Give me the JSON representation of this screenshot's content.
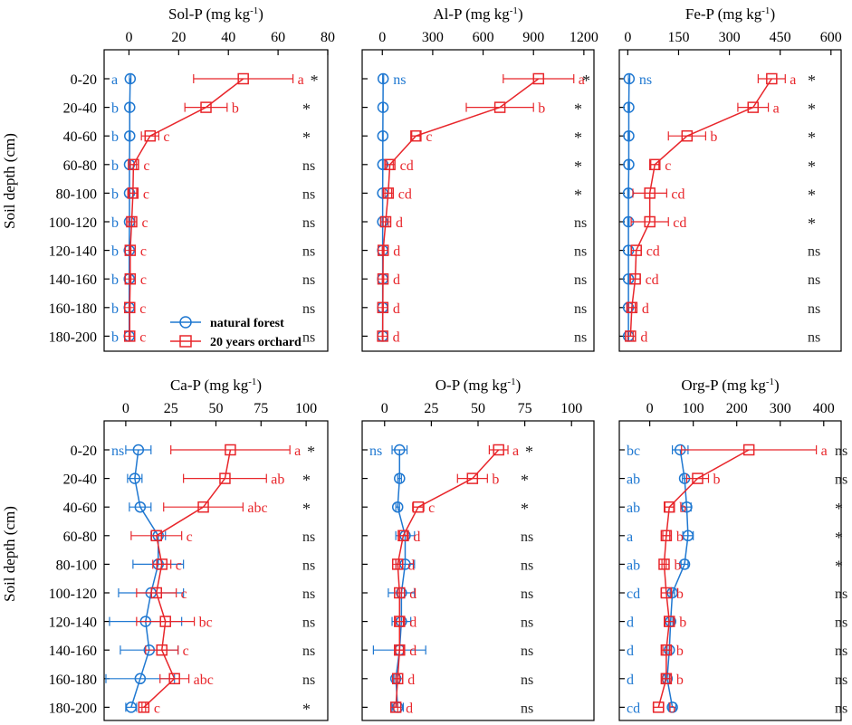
{
  "figure": {
    "ylabel": "Soil depth (cm)",
    "depths": [
      "0-20",
      "20-40",
      "40-60",
      "60-80",
      "80-100",
      "100-120",
      "120-140",
      "140-160",
      "160-180",
      "180-200"
    ],
    "legend": {
      "forest": "natural forest",
      "orchard": "20 years orchard"
    },
    "colors": {
      "forest": "#1f78d1",
      "orchard": "#e8262b",
      "sig": "#222222",
      "axis": "#000000"
    }
  },
  "chart_data": [
    {
      "type": "line",
      "title": "Sol-P",
      "unit": "(mg kg",
      "unit_sup": "-1",
      "unit_close": ")",
      "xlim": [
        -10,
        80
      ],
      "ticks": [
        0,
        20,
        40,
        60,
        80
      ],
      "categories": [
        "0-20",
        "20-40",
        "40-60",
        "60-80",
        "80-100",
        "100-120",
        "120-140",
        "140-160",
        "160-180",
        "180-200"
      ],
      "series": [
        {
          "name": "natural forest",
          "values": [
            0.5,
            0.3,
            0.3,
            0.2,
            0.2,
            0.2,
            0.1,
            0.1,
            0.1,
            0.1
          ],
          "err": [
            0.3,
            0.2,
            0.2,
            0.2,
            0.2,
            0.2,
            0.1,
            0.1,
            0.1,
            0.1
          ],
          "letters": [
            "a",
            "b",
            "b",
            "b",
            "b",
            "b",
            "b",
            "b",
            "b",
            "b"
          ]
        },
        {
          "name": "20 years orchard",
          "values": [
            46,
            31,
            8.5,
            1.8,
            1.6,
            1.1,
            0.5,
            0.5,
            0.3,
            0.3
          ],
          "err": [
            20,
            8.5,
            3.5,
            1.2,
            1.5,
            1.2,
            0.3,
            0.3,
            0.2,
            0.2
          ],
          "letters": [
            "a",
            "b",
            "c",
            "c",
            "c",
            "c",
            "c",
            "c",
            "c",
            "c"
          ]
        }
      ],
      "sig": [
        "*",
        "*",
        "*",
        "ns",
        "ns",
        "ns",
        "ns",
        "ns",
        "ns",
        "ns"
      ]
    },
    {
      "type": "line",
      "title": "Al-P",
      "unit": "(mg kg",
      "unit_sup": "-1",
      "unit_close": ")",
      "xlim": [
        -120,
        1260
      ],
      "ticks": [
        0,
        300,
        600,
        900,
        1200
      ],
      "categories": [
        "0-20",
        "20-40",
        "40-60",
        "60-80",
        "80-100",
        "100-120",
        "120-140",
        "140-160",
        "160-180",
        "180-200"
      ],
      "series": [
        {
          "name": "natural forest",
          "values": [
            5,
            4,
            3,
            3,
            2,
            2,
            2,
            2,
            2,
            2
          ],
          "err": [
            3,
            2,
            2,
            2,
            2,
            2,
            1,
            1,
            1,
            1
          ],
          "letters": [
            "ns",
            "",
            "",
            "",
            "",
            "",
            "",
            "",
            "",
            ""
          ]
        },
        {
          "name": "20 years orchard",
          "values": [
            930,
            700,
            200,
            45,
            35,
            20,
            5,
            4,
            3,
            2
          ],
          "err": [
            210,
            200,
            25,
            20,
            20,
            15,
            5,
            4,
            3,
            2
          ],
          "letters": [
            "a",
            "b",
            "c",
            "cd",
            "cd",
            "d",
            "d",
            "d",
            "d",
            "d"
          ]
        }
      ],
      "sig": [
        "*",
        "*",
        "*",
        "*",
        "*",
        "ns",
        "ns",
        "ns",
        "ns",
        "ns"
      ]
    },
    {
      "type": "line",
      "title": "Fe-P",
      "unit": "(mg kg",
      "unit_sup": "-1",
      "unit_close": ")",
      "xlim": [
        -25,
        630
      ],
      "ticks": [
        0,
        150,
        300,
        450,
        600
      ],
      "categories": [
        "0-20",
        "20-40",
        "40-60",
        "60-80",
        "80-100",
        "100-120",
        "120-140",
        "140-160",
        "160-180",
        "180-200"
      ],
      "series": [
        {
          "name": "natural forest",
          "values": [
            4,
            3,
            3,
            3,
            2,
            2,
            2,
            2,
            2,
            2
          ],
          "err": [
            2,
            2,
            2,
            2,
            2,
            2,
            1,
            1,
            1,
            1
          ],
          "letters": [
            "ns",
            "",
            "",
            "",
            "",
            "",
            "",
            "",
            "",
            ""
          ]
        },
        {
          "name": "20 years orchard",
          "values": [
            425,
            370,
            175,
            80,
            65,
            65,
            25,
            22,
            12,
            8
          ],
          "err": [
            40,
            45,
            55,
            12,
            50,
            55,
            15,
            15,
            10,
            8
          ],
          "letters": [
            "a",
            "a",
            "b",
            "c",
            "cd",
            "cd",
            "cd",
            "cd",
            "d",
            "d"
          ]
        }
      ],
      "sig": [
        "*",
        "*",
        "*",
        "*",
        "*",
        "*",
        "ns",
        "ns",
        "ns",
        "ns"
      ]
    },
    {
      "type": "line",
      "title": "Ca-P",
      "unit": "(mg kg",
      "unit_sup": "-1",
      "unit_close": ")",
      "xlim": [
        -12,
        112
      ],
      "ticks": [
        0,
        25,
        50,
        75,
        100
      ],
      "categories": [
        "0-20",
        "20-40",
        "40-60",
        "60-80",
        "80-100",
        "100-120",
        "120-140",
        "140-160",
        "160-180",
        "180-200"
      ],
      "series": [
        {
          "name": "natural forest",
          "values": [
            7,
            5,
            8,
            18,
            18,
            14,
            11,
            13,
            8,
            3
          ],
          "err": [
            7,
            4,
            6,
            4,
            14,
            18,
            20,
            16,
            19,
            3
          ],
          "letters": [
            "ns",
            "",
            "",
            "",
            "",
            "",
            "",
            "",
            "",
            ""
          ]
        },
        {
          "name": "20 years orchard",
          "values": [
            58,
            55,
            43,
            17,
            20,
            17,
            22,
            20,
            27,
            10
          ],
          "err": [
            33,
            23,
            22,
            14,
            5,
            11,
            16,
            9,
            8,
            1
          ],
          "letters": [
            "a",
            "ab",
            "abc",
            "c",
            "c",
            "c",
            "bc",
            "c",
            "abc",
            "c"
          ]
        }
      ],
      "sig": [
        "*",
        "*",
        "*",
        "ns",
        "ns",
        "ns",
        "ns",
        "ns",
        "ns",
        "*"
      ]
    },
    {
      "type": "line",
      "title": "O-P",
      "unit": "(mg kg",
      "unit_sup": "-1",
      "unit_close": ")",
      "xlim": [
        -12,
        112
      ],
      "ticks": [
        0,
        25,
        50,
        75,
        100
      ],
      "categories": [
        "0-20",
        "20-40",
        "40-60",
        "60-80",
        "80-100",
        "100-120",
        "120-140",
        "140-160",
        "160-180",
        "180-200"
      ],
      "series": [
        {
          "name": "natural forest",
          "values": [
            8,
            8,
            7,
            11,
            11,
            9,
            9,
            8,
            6,
            7
          ],
          "err": [
            4,
            1,
            1,
            5,
            5,
            7,
            5,
            14,
            1,
            3
          ],
          "letters": [
            "ns",
            "",
            "",
            "",
            "",
            "",
            "",
            "",
            "",
            ""
          ]
        },
        {
          "name": "20 years orchard",
          "values": [
            61,
            47,
            18,
            10,
            7,
            8,
            8,
            8,
            7,
            6
          ],
          "err": [
            5,
            8,
            3,
            2,
            1,
            1,
            2,
            2,
            1,
            1
          ],
          "letters": [
            "a",
            "b",
            "c",
            "d",
            "d",
            "d",
            "d",
            "d",
            "d",
            "d"
          ]
        }
      ],
      "sig": [
        "*",
        "*",
        "*",
        "ns",
        "ns",
        "ns",
        "ns",
        "ns",
        "ns",
        "ns"
      ]
    },
    {
      "type": "line",
      "title": "Org-P",
      "unit": "(mg kg",
      "unit_sup": "-1",
      "unit_close": ")",
      "xlim": [
        -70,
        440
      ],
      "ticks": [
        0,
        100,
        200,
        300,
        400
      ],
      "categories": [
        "0-20",
        "20-40",
        "40-60",
        "60-80",
        "80-100",
        "100-120",
        "120-140",
        "140-160",
        "160-180",
        "180-200"
      ],
      "series": [
        {
          "name": "natural forest",
          "values": [
            70,
            80,
            85,
            88,
            80,
            52,
            48,
            45,
            40,
            52
          ],
          "err": [
            18,
            5,
            10,
            12,
            8,
            5,
            5,
            5,
            5,
            8
          ],
          "letters": [
            "bc",
            "ab",
            "ab",
            "a",
            "ab",
            "cd",
            "d",
            "d",
            "d",
            "cd"
          ]
        },
        {
          "name": "20 years orchard",
          "values": [
            228,
            110,
            45,
            38,
            33,
            38,
            45,
            38,
            38,
            20
          ],
          "err": [
            155,
            25,
            10,
            8,
            5,
            12,
            10,
            8,
            8,
            12
          ],
          "letters": [
            "a",
            "b",
            "b",
            "b",
            "b",
            "b",
            "b",
            "b",
            "b",
            "b"
          ]
        }
      ],
      "sig": [
        "ns",
        "ns",
        "*",
        "*",
        "*",
        "ns",
        "ns",
        "ns",
        "ns",
        "ns"
      ]
    }
  ]
}
